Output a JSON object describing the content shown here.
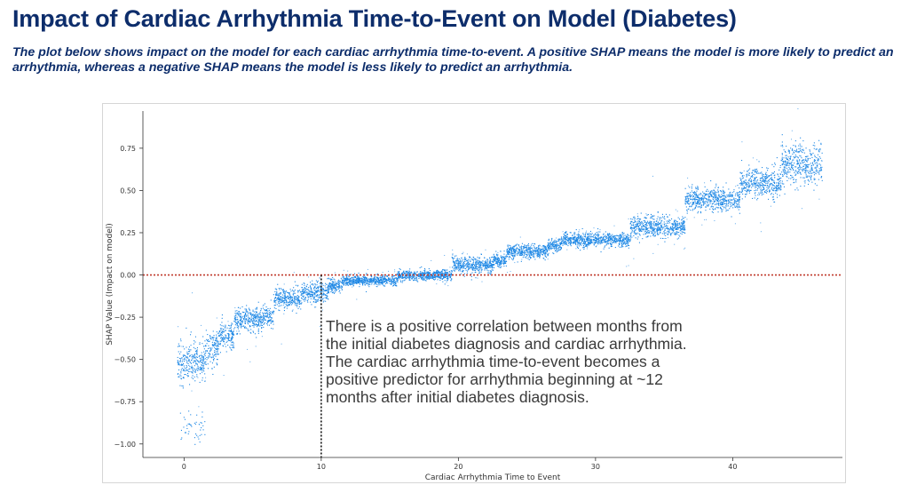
{
  "slide": {
    "title": "Impact of Cardiac Arrhythmia Time-to-Event on Model (Diabetes)",
    "subtitle": "The plot below shows impact on the model for each cardiac arrhythmia time-to-event. A positive SHAP means the model is more likely to predict an arrhythmia, whereas a negative SHAP means the model is less likely to predict an arrhythmia.",
    "annotation": "There is a positive correlation between months from the initial diabetes diagnosis and cardiac arrhythmia. The cardiac arrhythmia time-to-event becomes a positive predictor for arrhythmia beginning at ~12 months after initial diabetes diagnosis."
  },
  "chart_data": {
    "type": "scatter",
    "xlabel": "Cardiac Arrhythmia Time to Event",
    "ylabel": "SHAP Value (Impact on model)",
    "xlim": [
      -3,
      48
    ],
    "ylim": [
      -1.08,
      0.97
    ],
    "xticks": [
      0,
      10,
      20,
      30,
      40
    ],
    "yticks": [
      -1.0,
      -0.75,
      -0.5,
      -0.25,
      0.0,
      0.25,
      0.5,
      0.75
    ],
    "ytick_labels": [
      "−1.00",
      "−0.75",
      "−0.50",
      "−0.25",
      "0.00",
      "0.25",
      "0.50",
      "0.75"
    ],
    "point_color": "#1e88e5",
    "reference_lines": [
      {
        "orientation": "horizontal",
        "value": 0.0,
        "style": "dotted",
        "color": "#c0392b"
      },
      {
        "orientation": "vertical",
        "value": 10,
        "style": "dotted",
        "color": "#111111"
      }
    ],
    "clusters": [
      {
        "x": [
          -0.5,
          1.5
        ],
        "y_center": -0.51,
        "y_spread": 0.06
      },
      {
        "x": [
          1.5,
          2.5
        ],
        "y_center": -0.43,
        "y_spread": 0.05
      },
      {
        "x": [
          2.5,
          3.6
        ],
        "y_center": -0.36,
        "y_spread": 0.04
      },
      {
        "x": [
          3.6,
          6.5
        ],
        "y_center": -0.26,
        "y_spread": 0.035
      },
      {
        "x": [
          6.5,
          8.5
        ],
        "y_center": -0.14,
        "y_spread": 0.03
      },
      {
        "x": [
          8.5,
          10.5
        ],
        "y_center": -0.1,
        "y_spread": 0.03
      },
      {
        "x": [
          10.5,
          11.5
        ],
        "y_center": -0.06,
        "y_spread": 0.02
      },
      {
        "x": [
          11.5,
          15.5
        ],
        "y_center": -0.03,
        "y_spread": 0.015
      },
      {
        "x": [
          15.5,
          19.5
        ],
        "y_center": 0.0,
        "y_spread": 0.015
      },
      {
        "x": [
          19.5,
          22.5
        ],
        "y_center": 0.06,
        "y_spread": 0.025
      },
      {
        "x": [
          22.5,
          23.5
        ],
        "y_center": 0.09,
        "y_spread": 0.02
      },
      {
        "x": [
          23.5,
          26.5
        ],
        "y_center": 0.14,
        "y_spread": 0.02
      },
      {
        "x": [
          26.5,
          27.5
        ],
        "y_center": 0.18,
        "y_spread": 0.02
      },
      {
        "x": [
          27.5,
          32.5
        ],
        "y_center": 0.21,
        "y_spread": 0.02
      },
      {
        "x": [
          32.5,
          36.5
        ],
        "y_center": 0.29,
        "y_spread": 0.03
      },
      {
        "x": [
          36.5,
          40.5
        ],
        "y_center": 0.45,
        "y_spread": 0.035
      },
      {
        "x": [
          40.5,
          43.5
        ],
        "y_center": 0.55,
        "y_spread": 0.045
      },
      {
        "x": [
          43.5,
          46.5
        ],
        "y_center": 0.65,
        "y_spread": 0.06
      },
      {
        "x": [
          -0.3,
          1.5
        ],
        "y_center": -0.9,
        "y_spread": 0.05
      }
    ]
  }
}
